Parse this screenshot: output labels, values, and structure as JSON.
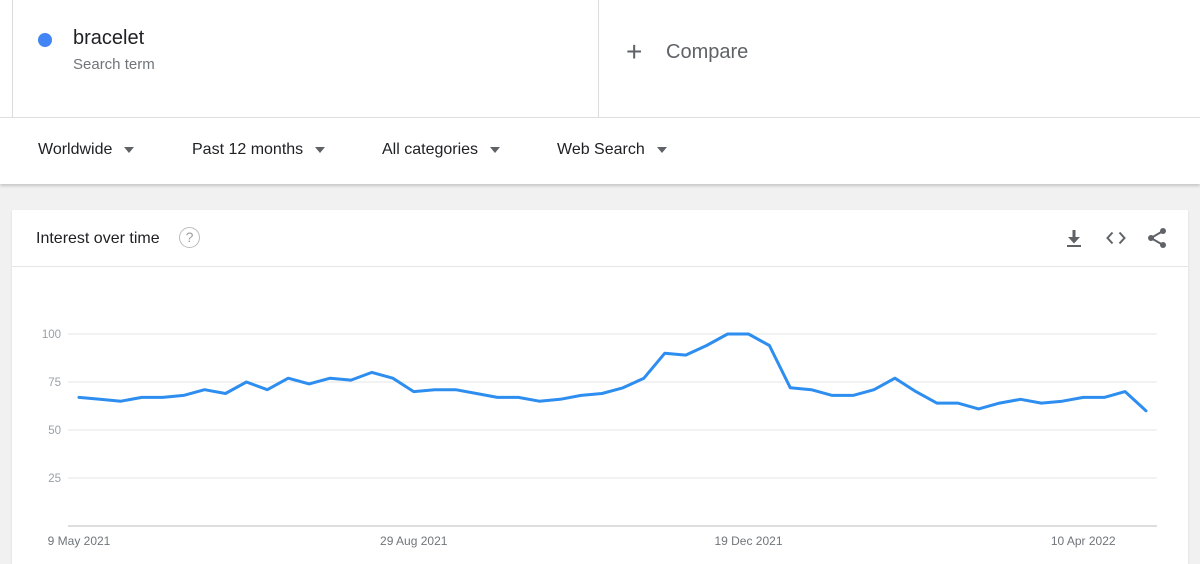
{
  "term": {
    "name": "bracelet",
    "type_label": "Search term",
    "color": "#4285f4"
  },
  "compare": {
    "label": "Compare",
    "icon": "plus-icon"
  },
  "filters": [
    {
      "label": "Worldwide"
    },
    {
      "label": "Past 12 months"
    },
    {
      "label": "All categories"
    },
    {
      "label": "Web Search"
    }
  ],
  "card": {
    "title": "Interest over time",
    "help_icon": "?",
    "actions": [
      "download-icon",
      "embed-code-icon",
      "share-icon"
    ]
  },
  "chart_data": {
    "type": "line",
    "title": "Interest over time",
    "ylim": [
      0,
      100
    ],
    "yticks": [
      25,
      50,
      75,
      100
    ],
    "grid": true,
    "x_tick_labels": [
      "9 May 2021",
      "29 Aug 2021",
      "19 Dec 2021",
      "10 Apr 2022"
    ],
    "x_tick_indices": [
      0,
      16,
      32,
      48
    ],
    "series": [
      {
        "color": "#2d8ef0",
        "values": [
          67,
          66,
          65,
          67,
          67,
          68,
          71,
          69,
          75,
          71,
          77,
          74,
          77,
          76,
          80,
          77,
          70,
          71,
          71,
          69,
          67,
          67,
          65,
          66,
          68,
          69,
          72,
          77,
          90,
          89,
          94,
          100,
          100,
          94,
          72,
          71,
          68,
          68,
          71,
          77,
          70,
          64,
          64,
          61,
          64,
          66,
          64,
          65,
          67,
          67,
          70,
          60
        ]
      }
    ]
  }
}
